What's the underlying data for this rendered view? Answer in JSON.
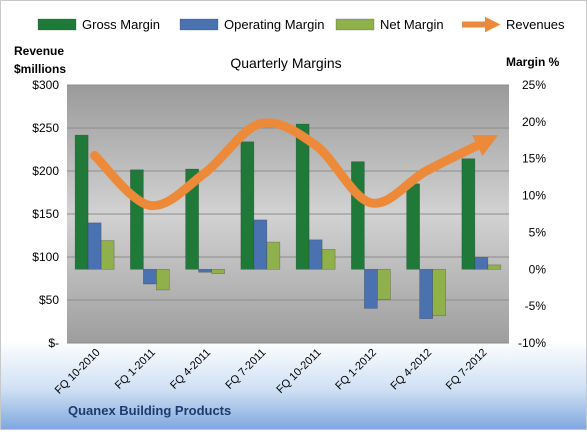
{
  "chart_data": {
    "type": "bar",
    "title": "Quarterly Margins",
    "company": "Quanex Building Products",
    "categories": [
      "FQ 10-2010",
      "FQ 1-2011",
      "FQ 4-2011",
      "FQ 7-2011",
      "FQ 10-2011",
      "FQ 1-2012",
      "FQ 4-2012",
      "FQ 7-2012"
    ],
    "series": [
      {
        "name": "Gross Margin",
        "kind": "bar",
        "axis": "right",
        "unit": "%",
        "color": "#1f7a3a",
        "values": [
          18.2,
          13.5,
          13.6,
          17.3,
          19.7,
          14.6,
          11.6,
          15.0
        ]
      },
      {
        "name": "Operating Margin",
        "kind": "bar",
        "axis": "right",
        "unit": "%",
        "color": "#4a72b0",
        "values": [
          6.3,
          -2.0,
          -0.4,
          6.7,
          4.0,
          -5.3,
          -6.7,
          1.6
        ]
      },
      {
        "name": "Net Margin",
        "kind": "bar",
        "axis": "right",
        "unit": "%",
        "color": "#8fb04a",
        "values": [
          3.9,
          -2.8,
          -0.6,
          3.7,
          2.7,
          -4.1,
          -6.3,
          0.6
        ]
      },
      {
        "name": "Revenues",
        "kind": "line",
        "axis": "left",
        "unit": "$millions",
        "color": "#ed8a3a",
        "values": [
          218,
          160,
          198,
          255,
          230,
          163,
          200,
          232
        ]
      }
    ],
    "left_axis": {
      "label_line1": "Revenue",
      "label_line2": "$millions",
      "ylim": [
        0,
        300
      ],
      "ticks": [
        "$-",
        "$50",
        "$100",
        "$150",
        "$200",
        "$250",
        "$300"
      ]
    },
    "right_axis": {
      "label": "Margin %",
      "ylim": [
        -10,
        25
      ],
      "ticks": [
        "-10%",
        "-5%",
        "0%",
        "5%",
        "10%",
        "15%",
        "20%",
        "25%"
      ]
    },
    "legend_position": "top",
    "grid": true
  }
}
